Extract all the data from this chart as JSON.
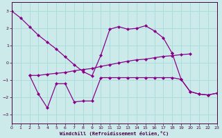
{
  "xlabel": "Windchill (Refroidissement éolien,°C)",
  "bg_color": "#cceaea",
  "line_color": "#880088",
  "grid_color": "#aadddd",
  "xlim": [
    0,
    23
  ],
  "ylim": [
    -3.5,
    3.5
  ],
  "xticks": [
    0,
    1,
    2,
    3,
    4,
    5,
    6,
    7,
    8,
    9,
    10,
    11,
    12,
    13,
    14,
    15,
    16,
    17,
    18,
    19,
    20,
    21,
    22,
    23
  ],
  "yticks": [
    -3,
    -2,
    -1,
    0,
    1,
    2,
    3
  ],
  "line1_x": [
    0,
    1,
    2,
    3,
    4,
    5,
    6,
    7,
    8,
    9,
    10,
    11,
    12,
    13,
    14,
    15,
    16,
    17,
    18
  ],
  "line1_y": [
    3.0,
    2.6,
    2.1,
    1.6,
    1.2,
    0.8,
    0.35,
    -0.1,
    -0.5,
    -0.75,
    0.45,
    1.95,
    2.1,
    1.95,
    2.0,
    2.15,
    1.85,
    1.45,
    0.55
  ],
  "line2_x": [
    2,
    3,
    4,
    5,
    6,
    7,
    8,
    9,
    10,
    11,
    12,
    13,
    14,
    15,
    16,
    17,
    18,
    19,
    20
  ],
  "line2_y": [
    -0.72,
    -0.72,
    -0.65,
    -0.6,
    -0.55,
    -0.45,
    -0.38,
    -0.32,
    -0.2,
    -0.1,
    0.0,
    0.1,
    0.18,
    0.22,
    0.3,
    0.38,
    0.42,
    0.48,
    0.52
  ],
  "line3_x": [
    2,
    3,
    4,
    5,
    6,
    7,
    8,
    9,
    10,
    11,
    12,
    13,
    14,
    15,
    16,
    17,
    18,
    19,
    20,
    21,
    22,
    23
  ],
  "line3_y": [
    -0.72,
    -1.8,
    -2.6,
    -1.2,
    -1.2,
    -2.25,
    -2.2,
    -2.2,
    -0.85,
    -0.85,
    -0.85,
    -0.85,
    -0.85,
    -0.85,
    -0.85,
    -0.85,
    -0.85,
    -0.95,
    -1.65,
    -1.8,
    -1.85,
    -1.75
  ],
  "line4_x": [
    18,
    19,
    20,
    21,
    22,
    23
  ],
  "line4_y": [
    0.55,
    -0.95,
    -1.65,
    -1.8,
    -1.85,
    -1.75
  ]
}
